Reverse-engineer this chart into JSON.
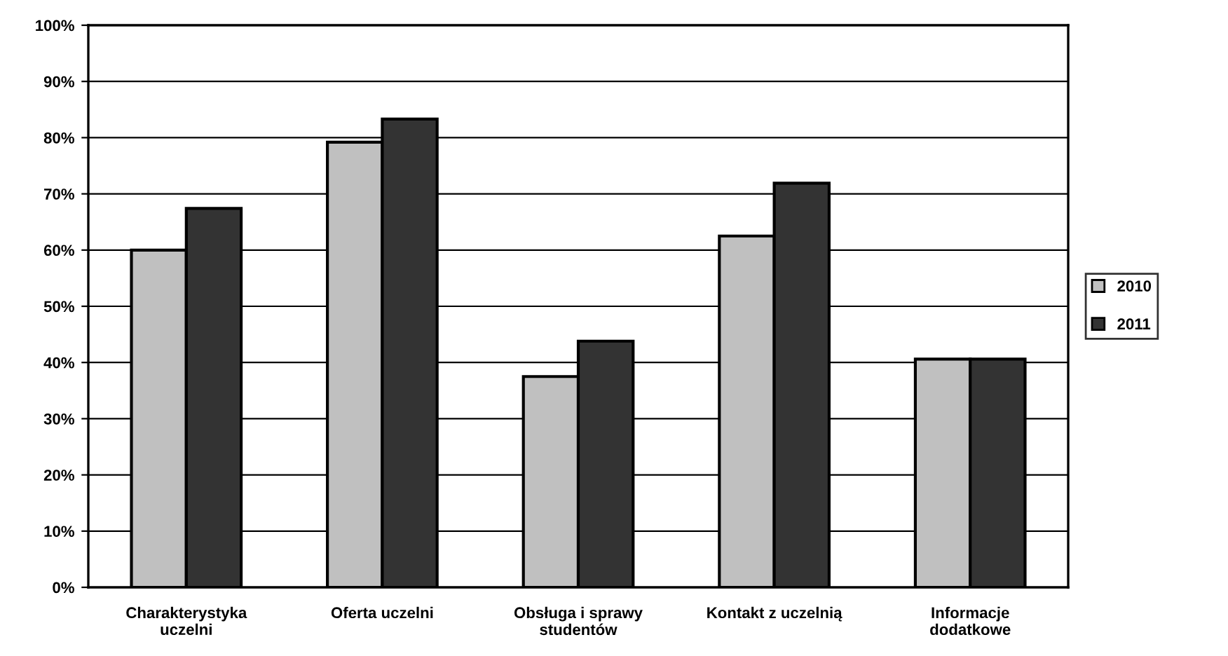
{
  "chart_data": {
    "type": "bar",
    "categories": [
      "Charakterystyka uczelni",
      "Oferta uczelni",
      "Obsługa i sprawy studentów",
      "Kontakt z uczelnią",
      "Informacje dodatkowe"
    ],
    "series": [
      {
        "name": "2010",
        "color": "#c0c0c0",
        "values": [
          60.0,
          79.2,
          37.5,
          62.5,
          40.6
        ]
      },
      {
        "name": "2011",
        "color": "#333333",
        "values": [
          67.4,
          83.3,
          43.8,
          71.9,
          40.6
        ]
      }
    ],
    "ylim": [
      0,
      100
    ],
    "yticks": [
      {
        "value": 0,
        "label": "0%"
      },
      {
        "value": 10,
        "label": "10%"
      },
      {
        "value": 20,
        "label": "20%"
      },
      {
        "value": 30,
        "label": "30%"
      },
      {
        "value": 40,
        "label": "40%"
      },
      {
        "value": 50,
        "label": "50%"
      },
      {
        "value": 60,
        "label": "60%"
      },
      {
        "value": 70,
        "label": "70%"
      },
      {
        "value": 80,
        "label": "80%"
      },
      {
        "value": 90,
        "label": "90%"
      },
      {
        "value": 100,
        "label": "100%"
      }
    ],
    "grid": "y",
    "legend": "right"
  }
}
